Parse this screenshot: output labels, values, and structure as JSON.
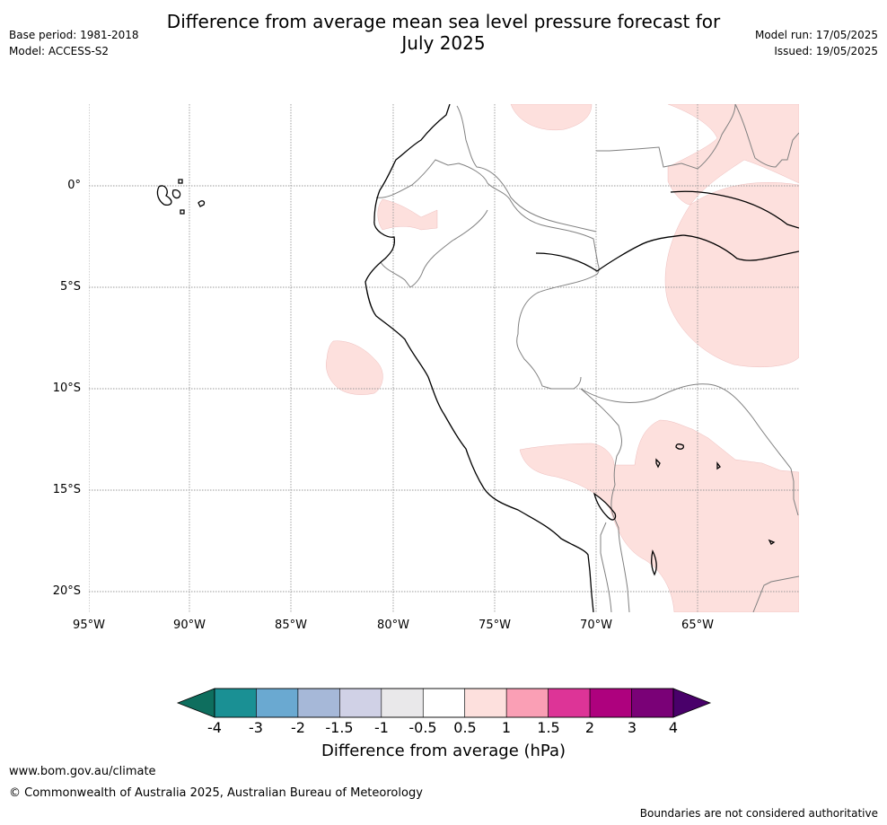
{
  "header": {
    "title_line1": "Difference from average mean sea level pressure forecast for",
    "title_line2": "July 2025",
    "base_period": "Base period: 1981-2018",
    "model": "Model: ACCESS-S2",
    "model_run": "Model run: 17/05/2025",
    "issued": "Issued: 19/05/2025"
  },
  "map": {
    "lat_labels": [
      "0°",
      "5°S",
      "10°S",
      "15°S",
      "20°S"
    ],
    "lon_labels": [
      "95°W",
      "90°W",
      "85°W",
      "80°W",
      "75°W",
      "70°W",
      "65°W"
    ],
    "colors": {
      "ocean": "#ffffff",
      "positive_0_5_to_1": "#fde0dd",
      "coastline": "#000000",
      "border": "#808080",
      "gridline": "#999999"
    }
  },
  "colorbar": {
    "ticks": [
      "-4",
      "-3",
      "-2",
      "-1.5",
      "-1",
      "-0.5",
      "0.5",
      "1",
      "1.5",
      "2",
      "3",
      "4"
    ],
    "colors": [
      "#1a9094",
      "#6aa9d1",
      "#a6b8d8",
      "#d0d1e6",
      "#e9e8ea",
      "#ffffff",
      "#fde0dd",
      "#fa9fb5",
      "#dd3497",
      "#ae017e",
      "#7a0177"
    ],
    "under_color": "#0e6e5e",
    "over_color": "#49006a",
    "label": "Difference from average (hPa)"
  },
  "footer": {
    "url": "www.bom.gov.au/climate",
    "copyright": "© Commonwealth of Australia 2025, Australian Bureau of Meteorology",
    "disclaimer": "Boundaries are not considered authoritative"
  }
}
